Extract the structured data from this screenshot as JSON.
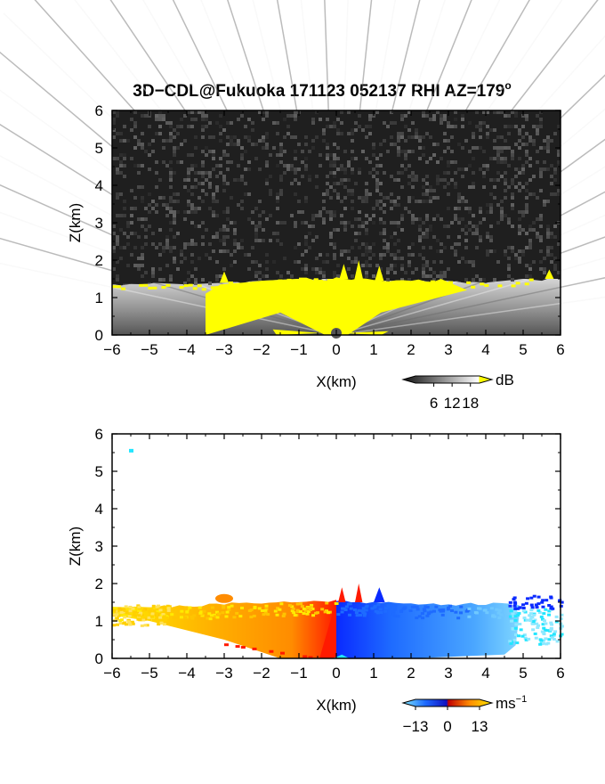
{
  "title": {
    "text": "3D−CDL@Fukuoka 171123 052137 RHI AZ=179",
    "degree": "o"
  },
  "colors": {
    "noise_dark": "#1f1f1f",
    "yellow": "#ffff00",
    "white": "#ffffff",
    "black": "#000000",
    "warm_red": "#ff1a00",
    "warm_orange": "#ff8c00",
    "warm_yellow": "#ffea00",
    "cool_blue": "#0a2aff",
    "mid_blue": "#1e6bff",
    "light_blue": "#4aa6ff",
    "cyan": "#22e6ff"
  },
  "chart_data": [
    {
      "type": "heatmap",
      "name": "intensity",
      "xlabel": "X(km)",
      "ylabel": "Z(km)",
      "xlim": [
        -6,
        6
      ],
      "ylim": [
        0,
        6
      ],
      "xticks": [
        "−6",
        "−5",
        "−4",
        "−3",
        "−2",
        "−1",
        "0",
        "1",
        "2",
        "3",
        "4",
        "5",
        "6"
      ],
      "yticks": [
        "0",
        "1",
        "2",
        "3",
        "4",
        "5",
        "6"
      ],
      "grid": false,
      "colorbar": {
        "unit": "dB",
        "ticks": [
          "6",
          "12",
          "18"
        ],
        "range": [
          0,
          21
        ]
      },
      "features": {
        "boundary_layer_top_km": [
          [
            -6,
            1.35
          ],
          [
            -5,
            1.4
          ],
          [
            -4,
            1.35
          ],
          [
            -3,
            1.4
          ],
          [
            -2,
            1.45
          ],
          [
            -1,
            1.5
          ],
          [
            0,
            1.5
          ],
          [
            1,
            1.45
          ],
          [
            2,
            1.45
          ],
          [
            3,
            1.45
          ],
          [
            4,
            1.4
          ],
          [
            5,
            1.5
          ],
          [
            6,
            1.5
          ]
        ],
        "plumes": [
          {
            "x": 0.6,
            "top": 2.0
          },
          {
            "x": 0.2,
            "top": 1.9
          },
          {
            "x": 1.15,
            "top": 1.85
          },
          {
            "x": -3.0,
            "top": 1.7
          },
          {
            "x": 5.7,
            "top": 1.75
          }
        ]
      }
    },
    {
      "type": "heatmap",
      "name": "velocity",
      "xlabel": "X(km)",
      "ylabel": "Z(km)",
      "xlim": [
        -6,
        6
      ],
      "ylim": [
        0,
        6
      ],
      "xticks": [
        "−6",
        "−5",
        "−4",
        "−3",
        "−2",
        "−1",
        "0",
        "1",
        "2",
        "3",
        "4",
        "5",
        "6"
      ],
      "yticks": [
        "0",
        "1",
        "2",
        "3",
        "4",
        "5",
        "6"
      ],
      "grid": false,
      "colorbar": {
        "unit": "ms",
        "unit_exp": "−1",
        "ticks": [
          "−13",
          "0",
          "13"
        ],
        "range": [
          -13,
          13
        ]
      },
      "features": {
        "data_top_km": [
          [
            -6,
            1.4
          ],
          [
            -5,
            1.38
          ],
          [
            -4,
            1.4
          ],
          [
            -3,
            1.45
          ],
          [
            -2,
            1.5
          ],
          [
            -1,
            1.5
          ],
          [
            0,
            1.55
          ],
          [
            1,
            1.5
          ],
          [
            2,
            1.45
          ],
          [
            3,
            1.45
          ],
          [
            4,
            1.45
          ],
          [
            5,
            1.45
          ]
        ],
        "isolated_points": [
          {
            "x": -5.5,
            "y": 5.55
          }
        ]
      }
    }
  ]
}
